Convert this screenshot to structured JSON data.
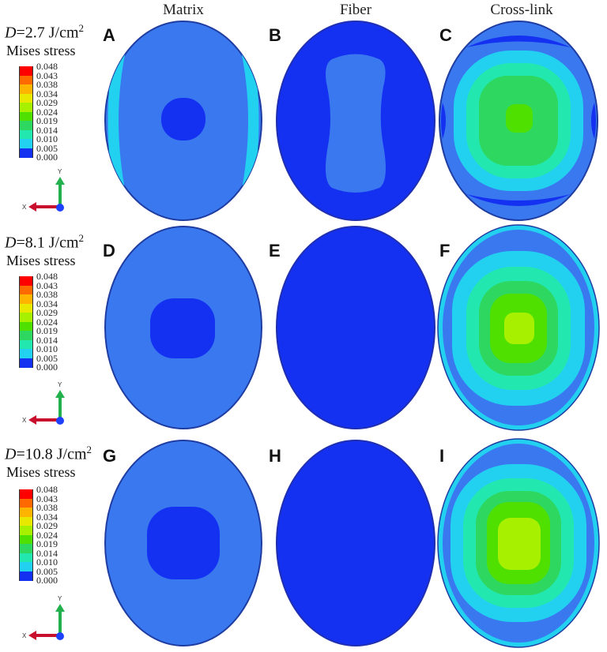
{
  "columns": [
    {
      "id": "matrix",
      "label": "Matrix"
    },
    {
      "id": "fiber",
      "label": "Fiber"
    },
    {
      "id": "crosslink",
      "label": "Cross-link"
    }
  ],
  "rows": [
    {
      "dose_symbol": "D",
      "dose_value": "=2.7 J/cm",
      "dose_exp": "2",
      "legend_title": "Mises stress",
      "panels": [
        "A",
        "B",
        "C"
      ]
    },
    {
      "dose_symbol": "D",
      "dose_value": "=8.1  J/cm",
      "dose_exp": "2",
      "legend_title": "Mises stress",
      "panels": [
        "D",
        "E",
        "F"
      ]
    },
    {
      "dose_symbol": "D",
      "dose_value": "=10.8 J/cm",
      "dose_exp": "2",
      "legend_title": "Mises stress",
      "panels": [
        "G",
        "H",
        "I"
      ]
    }
  ],
  "legend": {
    "ticks": [
      "0.048",
      "0.043",
      "0.038",
      "0.034",
      "0.029",
      "0.024",
      "0.019",
      "0.014",
      "0.010",
      "0.005",
      "0.000"
    ],
    "colors": [
      "#ff0000",
      "#ff6a00",
      "#ffb400",
      "#e8e800",
      "#a6f000",
      "#50e000",
      "#2ed860",
      "#22e8b0",
      "#22d0f0",
      "#3a8cf0",
      "#1430f0"
    ]
  },
  "axis_triad": {
    "x_label": "X",
    "y_label": "Y",
    "x_color": "#c8102e",
    "y_color": "#22b14c",
    "origin_color": "#1e40ff"
  },
  "colors": {
    "matrix_base": "#3a78f0",
    "matrix_center": "#1430f0",
    "matrix_edge_highlight": "#22d0f0",
    "fiber_base": "#1430f0",
    "fiber_core": "#3a78f0",
    "crosslink_levels": [
      "#3a78f0",
      "#22d0f0",
      "#22e8b0",
      "#2ed860",
      "#50e000",
      "#a6f000"
    ]
  }
}
